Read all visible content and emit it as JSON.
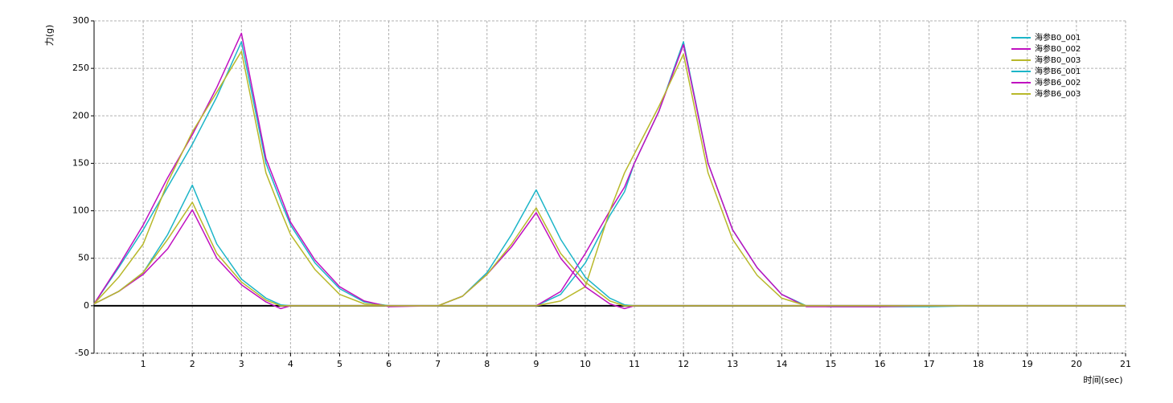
{
  "chart_data": {
    "type": "line",
    "y_label": "力(g)",
    "x_label": "时间(sec)",
    "x": [
      0,
      0.5,
      1,
      1.5,
      2,
      2.5,
      3,
      3.5,
      3.8,
      4,
      4.5,
      5,
      5.5,
      6,
      7,
      7.5,
      8,
      8.5,
      9,
      9.5,
      10,
      10.5,
      10.8,
      11,
      11.5,
      12,
      12.5,
      13,
      13.5,
      14,
      14.5,
      15,
      16,
      17,
      18,
      19,
      20,
      21
    ],
    "series": [
      {
        "name": "海参B0_001",
        "color": "#1cb5c8",
        "values": [
          2,
          40,
          80,
          125,
          170,
          220,
          278,
          150,
          110,
          85,
          45,
          18,
          4,
          0,
          0,
          0,
          0,
          0,
          0,
          12,
          45,
          95,
          120,
          150,
          205,
          278,
          150,
          80,
          40,
          12,
          0,
          -1,
          -1,
          -1,
          0,
          0,
          0,
          0
        ]
      },
      {
        "name": "海参B0_002",
        "color": "#c010c0",
        "values": [
          2,
          42,
          85,
          135,
          180,
          230,
          287,
          155,
          115,
          88,
          48,
          20,
          5,
          -1,
          0,
          0,
          0,
          0,
          0,
          15,
          55,
          100,
          125,
          150,
          205,
          275,
          150,
          80,
          40,
          12,
          -1,
          -1,
          -1,
          0,
          0,
          0,
          0,
          0
        ]
      },
      {
        "name": "海参B0_003",
        "color": "#b8b82a",
        "values": [
          2,
          30,
          65,
          130,
          183,
          225,
          268,
          140,
          100,
          75,
          38,
          12,
          2,
          0,
          0,
          0,
          0,
          0,
          0,
          5,
          20,
          100,
          140,
          160,
          210,
          265,
          140,
          70,
          32,
          8,
          0,
          0,
          0,
          0,
          0,
          0,
          0,
          0
        ]
      },
      {
        "name": "海参B6_001",
        "color": "#1cb5c8",
        "values": [
          2,
          15,
          35,
          75,
          127,
          65,
          28,
          8,
          1,
          0,
          0,
          0,
          0,
          0,
          0,
          10,
          35,
          75,
          122,
          70,
          30,
          8,
          1,
          0,
          0,
          0,
          0,
          0,
          0,
          0,
          0,
          0,
          0,
          0,
          0,
          0,
          0,
          0
        ]
      },
      {
        "name": "海参B6_002",
        "color": "#c010c0",
        "values": [
          2,
          15,
          33,
          60,
          101,
          50,
          22,
          4,
          -3,
          0,
          0,
          0,
          0,
          0,
          0,
          10,
          33,
          62,
          98,
          50,
          20,
          2,
          -3,
          0,
          0,
          0,
          0,
          0,
          0,
          0,
          0,
          0,
          0,
          0,
          0,
          0,
          0,
          0
        ]
      },
      {
        "name": "海参B6_003",
        "color": "#b8b82a",
        "values": [
          2,
          15,
          35,
          70,
          109,
          55,
          25,
          6,
          0,
          0,
          0,
          0,
          0,
          0,
          0,
          10,
          33,
          65,
          103,
          55,
          25,
          5,
          0,
          0,
          0,
          0,
          0,
          0,
          0,
          0,
          0,
          0,
          0,
          0,
          0,
          0,
          0,
          0
        ]
      }
    ],
    "xlim": [
      0,
      21
    ],
    "xticks": [
      1,
      2,
      3,
      4,
      5,
      6,
      7,
      8,
      9,
      10,
      11,
      12,
      13,
      14,
      15,
      16,
      17,
      18,
      19,
      20,
      21
    ],
    "ylim": [
      -50,
      300
    ],
    "yticks": [
      -50,
      0,
      50,
      100,
      150,
      200,
      250,
      300
    ],
    "grid": true,
    "legend": "upper right"
  }
}
